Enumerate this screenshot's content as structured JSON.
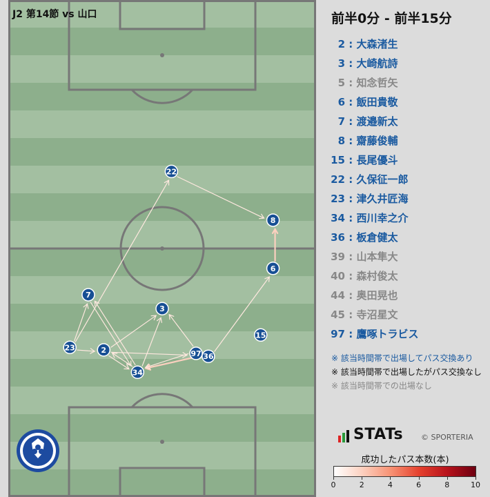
{
  "header": {
    "match_title": "J2 第14節 vs 山口",
    "period_title": "前半0分 - 前半15分"
  },
  "colors": {
    "active": "#1a5aa0",
    "inactive": "#888888",
    "node_fill": "#174f94",
    "pitch_light": "#a3bfa1",
    "pitch_dark": "#8daf8c",
    "lines": "#777777"
  },
  "roster": [
    {
      "num": "2",
      "name": "大森渚生",
      "status": "active"
    },
    {
      "num": "3",
      "name": "大崎航詩",
      "status": "active"
    },
    {
      "num": "5",
      "name": "知念哲矢",
      "status": "inactive"
    },
    {
      "num": "6",
      "name": "飯田貴敬",
      "status": "active"
    },
    {
      "num": "7",
      "name": "渡邉新太",
      "status": "active"
    },
    {
      "num": "8",
      "name": "齋藤俊輔",
      "status": "active"
    },
    {
      "num": "15",
      "name": "長尾優斗",
      "status": "active"
    },
    {
      "num": "22",
      "name": "久保征一郎",
      "status": "active"
    },
    {
      "num": "23",
      "name": "津久井匠海",
      "status": "active"
    },
    {
      "num": "34",
      "name": "西川幸之介",
      "status": "active"
    },
    {
      "num": "36",
      "name": "板倉健太",
      "status": "active"
    },
    {
      "num": "39",
      "name": "山本隼大",
      "status": "inactive"
    },
    {
      "num": "40",
      "name": "森村俊太",
      "status": "inactive"
    },
    {
      "num": "44",
      "name": "奥田晃也",
      "status": "inactive"
    },
    {
      "num": "45",
      "name": "寺沼星文",
      "status": "inactive"
    },
    {
      "num": "97",
      "name": "鷹啄トラビス",
      "status": "active"
    }
  ],
  "legend_notes": [
    {
      "text": "※ 該当時間帯で出場してパス交換あり",
      "color": "#1a5aa0"
    },
    {
      "text": "※ 該当時間帯で出場したがパス交換なし",
      "color": "#111111"
    },
    {
      "text": "※ 該当時間帯での出場なし",
      "color": "#888888"
    }
  ],
  "brand": {
    "name": "STATs",
    "copyright": "© SPORTERIA"
  },
  "colorbar": {
    "title": "成功したパス本数(本)",
    "min": 0,
    "max": 10,
    "ticks": [
      "0",
      "2",
      "4",
      "6",
      "8",
      "10"
    ],
    "stops": [
      "#ffffff",
      "#fcd0bf",
      "#f79274",
      "#e5412e",
      "#b7121b",
      "#6e0011"
    ]
  },
  "chart_data": {
    "type": "network",
    "scale": "pitch-coordinates (0-100 width, 0-100 length from top goal)",
    "nodes": [
      {
        "id": "22",
        "x": 53,
        "y": 34.5
      },
      {
        "id": "8",
        "x": 86,
        "y": 44.3
      },
      {
        "id": "6",
        "x": 86,
        "y": 54.0
      },
      {
        "id": "7",
        "x": 26,
        "y": 59.3
      },
      {
        "id": "3",
        "x": 50,
        "y": 62.1
      },
      {
        "id": "15",
        "x": 82,
        "y": 67.4
      },
      {
        "id": "23",
        "x": 20,
        "y": 69.9
      },
      {
        "id": "2",
        "x": 31,
        "y": 70.4
      },
      {
        "id": "97",
        "x": 61,
        "y": 71.1
      },
      {
        "id": "36",
        "x": 65,
        "y": 71.7
      },
      {
        "id": "34",
        "x": 42,
        "y": 74.9
      }
    ],
    "edges": [
      {
        "from": "23",
        "to": "22",
        "passes": 1
      },
      {
        "from": "22",
        "to": "8",
        "passes": 1
      },
      {
        "from": "6",
        "to": "8",
        "passes": 2
      },
      {
        "from": "36",
        "to": "6",
        "passes": 1
      },
      {
        "from": "23",
        "to": "2",
        "passes": 1
      },
      {
        "from": "2",
        "to": "3",
        "passes": 1
      },
      {
        "from": "2",
        "to": "97",
        "passes": 1
      },
      {
        "from": "2",
        "to": "34",
        "passes": 1
      },
      {
        "from": "23",
        "to": "7",
        "passes": 1
      },
      {
        "from": "7",
        "to": "34",
        "passes": 1
      },
      {
        "from": "34",
        "to": "7",
        "passes": 1
      },
      {
        "from": "34",
        "to": "3",
        "passes": 1
      },
      {
        "from": "97",
        "to": "3",
        "passes": 1
      },
      {
        "from": "36",
        "to": "34",
        "passes": 2
      },
      {
        "from": "97",
        "to": "34",
        "passes": 1
      },
      {
        "from": "34",
        "to": "2",
        "passes": 1
      }
    ]
  }
}
